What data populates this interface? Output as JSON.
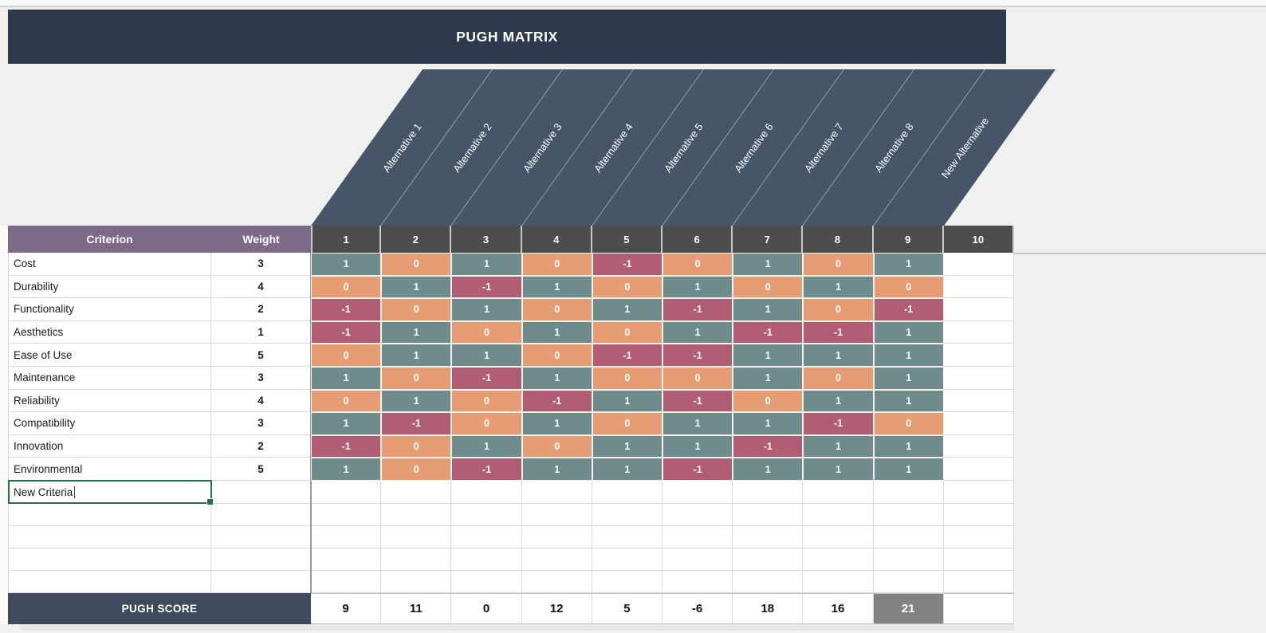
{
  "title": "PUGH MATRIX",
  "alternatives": [
    "Alternative 1",
    "Alternative 2",
    "Alternative 3",
    "Alternative 4",
    "Alternative 5",
    "Alternative 6",
    "Alternative 7",
    "Alternative 8",
    "New Alternative"
  ],
  "table": {
    "criterion_header": "Criterion",
    "weight_header": "Weight",
    "column_numbers": [
      "1",
      "2",
      "3",
      "4",
      "5",
      "6",
      "7",
      "8",
      "9",
      "10"
    ],
    "rows": [
      {
        "criterion": "Cost",
        "weight": 3,
        "scores": [
          1,
          0,
          1,
          0,
          -1,
          0,
          1,
          0,
          1
        ]
      },
      {
        "criterion": "Durability",
        "weight": 4,
        "scores": [
          0,
          1,
          -1,
          1,
          0,
          1,
          0,
          1,
          0
        ]
      },
      {
        "criterion": "Functionality",
        "weight": 2,
        "scores": [
          -1,
          0,
          1,
          0,
          1,
          -1,
          1,
          0,
          -1
        ]
      },
      {
        "criterion": "Aesthetics",
        "weight": 1,
        "scores": [
          -1,
          1,
          0,
          1,
          0,
          1,
          -1,
          -1,
          1
        ]
      },
      {
        "criterion": "Ease of Use",
        "weight": 5,
        "scores": [
          0,
          1,
          1,
          0,
          -1,
          -1,
          1,
          1,
          1
        ]
      },
      {
        "criterion": "Maintenance",
        "weight": 3,
        "scores": [
          1,
          0,
          -1,
          1,
          0,
          0,
          1,
          0,
          1
        ]
      },
      {
        "criterion": "Reliability",
        "weight": 4,
        "scores": [
          0,
          1,
          0,
          -1,
          1,
          -1,
          0,
          1,
          1
        ]
      },
      {
        "criterion": "Compatibility",
        "weight": 3,
        "scores": [
          1,
          -1,
          0,
          1,
          0,
          1,
          1,
          -1,
          0
        ]
      },
      {
        "criterion": "Innovation",
        "weight": 2,
        "scores": [
          -1,
          0,
          1,
          0,
          1,
          1,
          -1,
          1,
          1
        ]
      },
      {
        "criterion": "Environmental",
        "weight": 5,
        "scores": [
          1,
          0,
          -1,
          1,
          1,
          -1,
          1,
          1,
          1
        ]
      }
    ],
    "new_criterion": {
      "label": "New Criteria",
      "editing": true
    },
    "empty_row_count": 4,
    "score_row": {
      "label": "PUGH SCORE",
      "values": [
        "9",
        "11",
        "0",
        "12",
        "5",
        "-6",
        "18",
        "16",
        "21",
        ""
      ],
      "highlighted_column": 9
    }
  },
  "colors": {
    "positive": "#6f8c8d",
    "zero": "#e69d73",
    "negative": "#b15d74",
    "header_purple": "#7c6a87",
    "header_gray": "#4d4d4d",
    "banner_navy": "#2e3a4b",
    "diagonal_navy": "#475568",
    "score_bar_navy": "#3d4b5d",
    "highlight_gray": "#828282",
    "selection_green": "#1f7244"
  }
}
